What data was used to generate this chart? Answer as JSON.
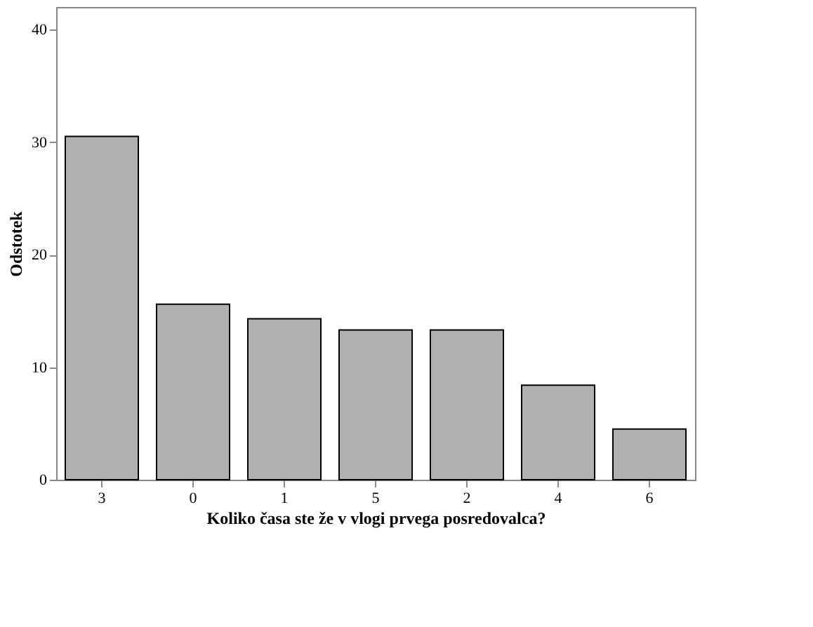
{
  "chart_data": {
    "type": "bar",
    "xlabel": "Koliko časa ste že v vlogi prvega posredovalca?",
    "ylabel": "Odstotek",
    "categories": [
      "3",
      "0",
      "1",
      "5",
      "2",
      "4",
      "6"
    ],
    "values": [
      30.5,
      15.6,
      14.3,
      13.3,
      13.3,
      8.4,
      4.5
    ],
    "color": "#b0b0b0",
    "ylim": [
      0,
      42
    ],
    "yticks": [
      0,
      10,
      20,
      30,
      40
    ],
    "grid": false
  }
}
